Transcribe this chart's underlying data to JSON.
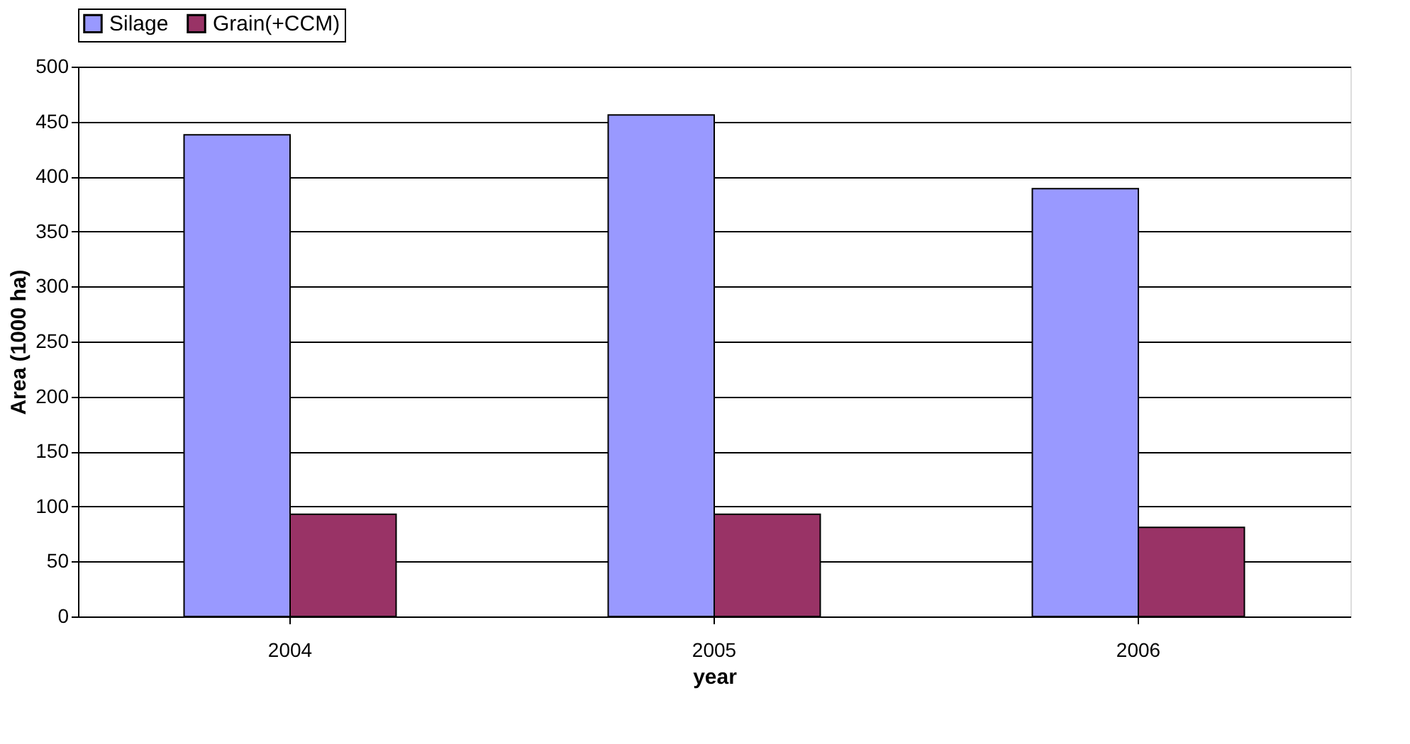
{
  "chart_data": {
    "type": "bar",
    "xlabel": "year",
    "ylabel": "Area (1000 ha)",
    "categories": [
      "2004",
      "2005",
      "2006"
    ],
    "series": [
      {
        "name": "Silage",
        "color": "#9999ff",
        "values": [
          438,
          456,
          389
        ]
      },
      {
        "name": "Grain(+CCM)",
        "color": "#993366",
        "values": [
          93,
          93,
          81
        ]
      }
    ],
    "ylim": [
      0,
      500
    ],
    "yticks": [
      0,
      50,
      100,
      150,
      200,
      250,
      300,
      350,
      400,
      450,
      500
    ],
    "grid": "y",
    "legend": "top"
  }
}
